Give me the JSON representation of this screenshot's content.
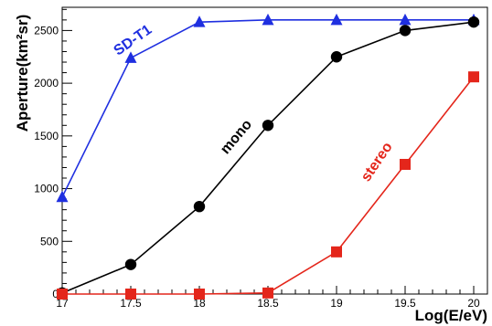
{
  "chart_data": {
    "type": "line",
    "xlabel": "Log(E/eV)",
    "ylabel": "Aperture(km²sr)",
    "xlim": [
      17,
      20.1
    ],
    "ylim": [
      0,
      2720
    ],
    "x_ticks": [
      "17",
      "17.5",
      "18",
      "18.5",
      "19",
      "19.5",
      "20"
    ],
    "y_ticks": [
      "0",
      "500",
      "1000",
      "1500",
      "2000",
      "2500"
    ],
    "grid": false,
    "legend": "none",
    "series": [
      {
        "name": "SD-T1",
        "marker": "triangle",
        "color": "#1f2fe0",
        "x": [
          17,
          17.5,
          18,
          18.5,
          19,
          19.5,
          20
        ],
        "y": [
          920,
          2240,
          2580,
          2600,
          2600,
          2600,
          2600
        ]
      },
      {
        "name": "mono",
        "marker": "circle",
        "color": "#000000",
        "x": [
          17,
          17.5,
          18,
          18.5,
          19,
          19.5,
          20
        ],
        "y": [
          10,
          280,
          830,
          1600,
          2250,
          2500,
          2580
        ]
      },
      {
        "name": "stereo",
        "marker": "square",
        "color": "#e4261b",
        "x": [
          17,
          17.5,
          18,
          18.5,
          19,
          19.5,
          20
        ],
        "y": [
          0,
          0,
          0,
          10,
          400,
          1230,
          2060
        ]
      }
    ]
  }
}
